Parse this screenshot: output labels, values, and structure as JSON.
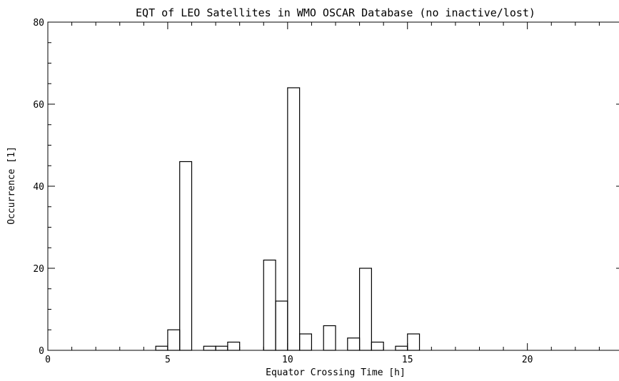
{
  "chart_data": {
    "type": "bar",
    "style": "histogram-step",
    "title": "EQT of LEO Satellites in WMO OSCAR Database (no inactive/lost)",
    "xlabel": "Equator Crossing Time [h]",
    "ylabel": "Occurrence [1]",
    "xlim": [
      0,
      24
    ],
    "ylim": [
      0,
      80
    ],
    "bin_width": 0.5,
    "x_ticks": [
      "0",
      "5",
      "10",
      "15",
      "20"
    ],
    "y_ticks": [
      "0",
      "20",
      "40",
      "60",
      "80"
    ],
    "grid": false,
    "bins": [
      {
        "x": 4.75,
        "value": 1
      },
      {
        "x": 5.25,
        "value": 5
      },
      {
        "x": 5.75,
        "value": 46
      },
      {
        "x": 6.75,
        "value": 1
      },
      {
        "x": 7.25,
        "value": 1
      },
      {
        "x": 7.75,
        "value": 2
      },
      {
        "x": 9.25,
        "value": 22
      },
      {
        "x": 9.75,
        "value": 12
      },
      {
        "x": 10.25,
        "value": 64
      },
      {
        "x": 10.75,
        "value": 4
      },
      {
        "x": 11.75,
        "value": 6
      },
      {
        "x": 12.75,
        "value": 3
      },
      {
        "x": 13.25,
        "value": 20
      },
      {
        "x": 13.75,
        "value": 2
      },
      {
        "x": 14.75,
        "value": 1
      },
      {
        "x": 15.25,
        "value": 4
      }
    ]
  }
}
